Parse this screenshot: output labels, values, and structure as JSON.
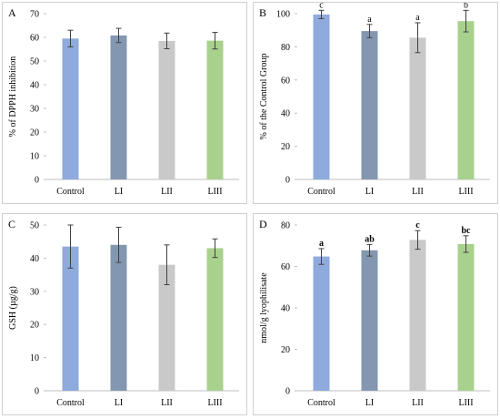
{
  "chart_data": [
    {
      "panel": "A",
      "type": "bar",
      "categories": [
        "Control",
        "LI",
        "LII",
        "LIII"
      ],
      "values": [
        59.5,
        60.8,
        58.5,
        58.6
      ],
      "errors": [
        3.5,
        3.0,
        3.3,
        3.5
      ],
      "sig_labels": [
        "",
        "",
        "",
        ""
      ],
      "title": "",
      "xlabel": "",
      "ylabel": "% of DPPH inhibition",
      "ylim": [
        0,
        70
      ],
      "yticks": [
        0,
        10,
        20,
        30,
        40,
        50,
        60,
        70
      ],
      "grid": false,
      "legend": "none",
      "colors": [
        "#8faadc",
        "#8497b0",
        "#c9c9c9",
        "#a9d18e"
      ]
    },
    {
      "panel": "B",
      "type": "bar",
      "categories": [
        "Control",
        "LI",
        "LII",
        "LIII"
      ],
      "values": [
        99.5,
        89.5,
        85.5,
        95.5
      ],
      "errors": [
        2.5,
        4.0,
        9.0,
        6.5
      ],
      "sig_labels": [
        "c",
        "a",
        "a",
        "b"
      ],
      "title": "",
      "xlabel": "",
      "ylabel": "% of the Control Group",
      "ylim": [
        0,
        100
      ],
      "yticks": [
        0,
        20,
        40,
        60,
        80,
        100
      ],
      "grid": false,
      "legend": "none",
      "colors": [
        "#8faadc",
        "#8497b0",
        "#c9c9c9",
        "#a9d18e"
      ]
    },
    {
      "panel": "C",
      "type": "bar",
      "categories": [
        "Control",
        "LI",
        "LII",
        "LIII"
      ],
      "values": [
        43.5,
        44.0,
        38.0,
        43.0
      ],
      "errors": [
        6.5,
        5.3,
        6.0,
        2.8
      ],
      "sig_labels": [
        "",
        "",
        "",
        ""
      ],
      "title": "",
      "xlabel": "",
      "ylabel": "GSH (µg/g)",
      "ylim": [
        0,
        50
      ],
      "yticks": [
        0,
        10,
        20,
        30,
        40,
        50
      ],
      "grid": false,
      "legend": "none",
      "colors": [
        "#8faadc",
        "#8497b0",
        "#c9c9c9",
        "#a9d18e"
      ]
    },
    {
      "panel": "D",
      "type": "bar",
      "categories": [
        "Control",
        "LI",
        "LII",
        "LIII"
      ],
      "values": [
        64.8,
        67.8,
        72.8,
        70.8
      ],
      "errors": [
        3.8,
        2.8,
        4.5,
        4.0
      ],
      "sig_labels": [
        "a",
        "ab",
        "c",
        "bc"
      ],
      "sig_bold": true,
      "title": "",
      "xlabel": "",
      "ylabel": "nmol/g lyophilisate",
      "ylim": [
        0,
        80
      ],
      "yticks": [
        0,
        20,
        40,
        60,
        80
      ],
      "grid": false,
      "legend": "none",
      "colors": [
        "#8faadc",
        "#8497b0",
        "#c9c9c9",
        "#a9d18e"
      ]
    }
  ]
}
